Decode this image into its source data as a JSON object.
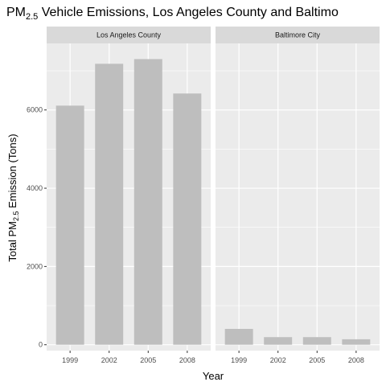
{
  "chart_data": {
    "type": "bar",
    "title": {
      "prefix": "PM",
      "subscript": "2.5",
      "suffix": " Vehicle Emissions, Los Angeles County and Baltimo"
    },
    "xlabel": "Year",
    "ylabel": {
      "prefix": "Total PM",
      "subscript": "2.5",
      "suffix": " Emission (Tons)"
    },
    "ylim": [
      -150,
      7700
    ],
    "y_ticks": [
      0,
      2000,
      4000,
      6000
    ],
    "grid": true,
    "categories": [
      "1999",
      "2002",
      "2005",
      "2008"
    ],
    "bar_color": "#bebebe",
    "panel_background": "#ebebeb",
    "strip_background": "#d9d9d9",
    "grid_color": "#ffffff",
    "facets": [
      {
        "name": "Los Angeles County",
        "values": [
          6110,
          7180,
          7300,
          6420
        ]
      },
      {
        "name": "Baltimore City",
        "values": [
          405,
          195,
          195,
          140
        ]
      }
    ]
  }
}
